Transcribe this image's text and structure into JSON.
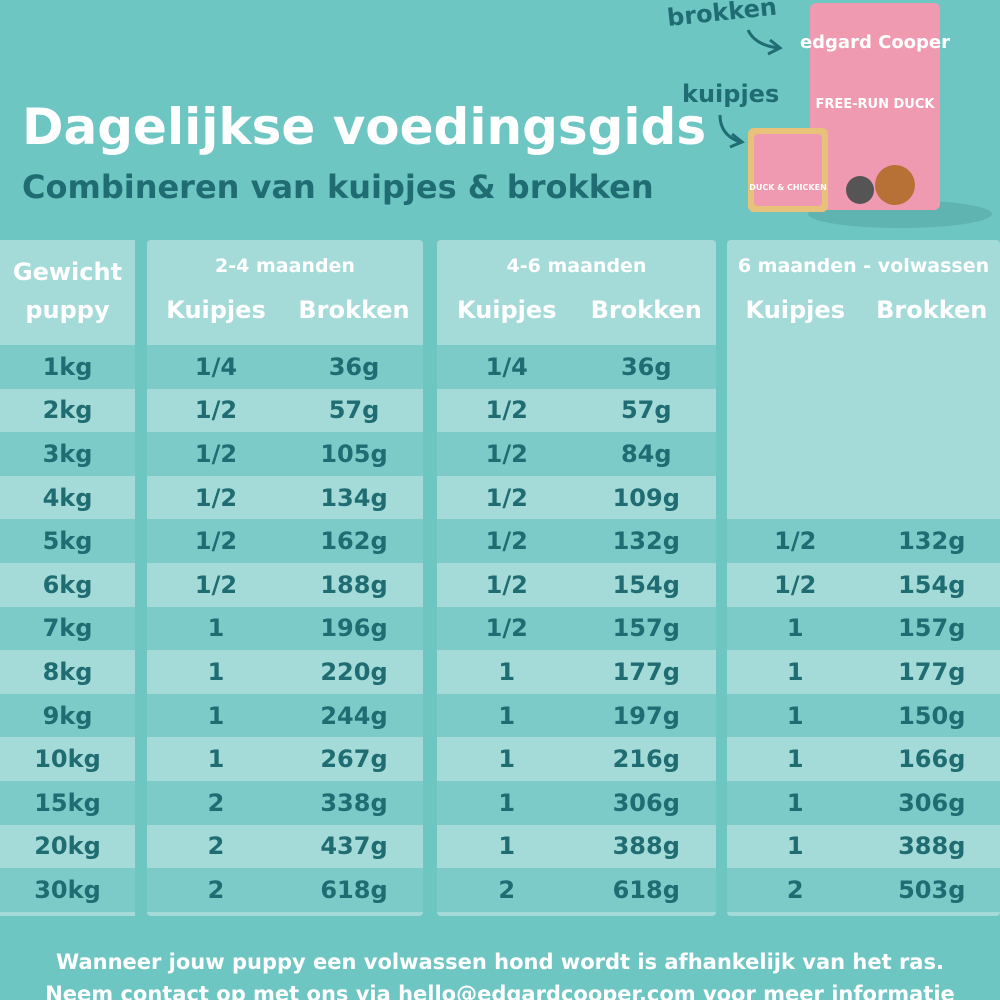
{
  "header": {
    "title": "Dagelijkse voedingsgids",
    "subtitle": "Combineren van kuipjes & brokken"
  },
  "product": {
    "label_dry": "brokken",
    "label_wet": "kuipjes",
    "brand": "edgard Cooper",
    "name": "FREE-RUN DUCK",
    "tray_name": "DUCK & CHICKEN"
  },
  "table": {
    "weight_header": [
      "Gewicht",
      "puppy"
    ],
    "groups": [
      {
        "title": "2-4 maanden",
        "columns": [
          "Kuipjes",
          "Brokken"
        ]
      },
      {
        "title": "4-6 maanden",
        "columns": [
          "Kuipjes",
          "Brokken"
        ]
      },
      {
        "title": "6 maanden - volwassen",
        "columns": [
          "Kuipjes",
          "Brokken"
        ]
      }
    ],
    "rows": [
      [
        "1kg",
        "1/4",
        "36g",
        "1/4",
        "36g",
        null,
        null
      ],
      [
        "2kg",
        "1/2",
        "57g",
        "1/2",
        "57g",
        null,
        null
      ],
      [
        "3kg",
        "1/2",
        "105g",
        "1/2",
        "84g",
        null,
        null
      ],
      [
        "4kg",
        "1/2",
        "134g",
        "1/2",
        "109g",
        null,
        null
      ],
      [
        "5kg",
        "1/2",
        "162g",
        "1/2",
        "132g",
        "1/2",
        "132g"
      ],
      [
        "6kg",
        "1/2",
        "188g",
        "1/2",
        "154g",
        "1/2",
        "154g"
      ],
      [
        "7kg",
        "1",
        "196g",
        "1/2",
        "157g",
        "1",
        "157g"
      ],
      [
        "8kg",
        "1",
        "220g",
        "1",
        "177g",
        "1",
        "177g"
      ],
      [
        "9kg",
        "1",
        "244g",
        "1",
        "197g",
        "1",
        "150g"
      ],
      [
        "10kg",
        "1",
        "267g",
        "1",
        "216g",
        "1",
        "166g"
      ],
      [
        "15kg",
        "2",
        "338g",
        "1",
        "306g",
        "1",
        "306g"
      ],
      [
        "20kg",
        "2",
        "437g",
        "1",
        "388g",
        "1",
        "388g"
      ],
      [
        "30kg",
        "2",
        "618g",
        "2",
        "618g",
        "2",
        "503g"
      ]
    ]
  },
  "footer": [
    "Wanneer jouw puppy een volwassen hond wordt is afhankelijk van het ras.",
    "Neem contact op met ons via hello@edgardcooper.com voor meer informatie"
  ]
}
